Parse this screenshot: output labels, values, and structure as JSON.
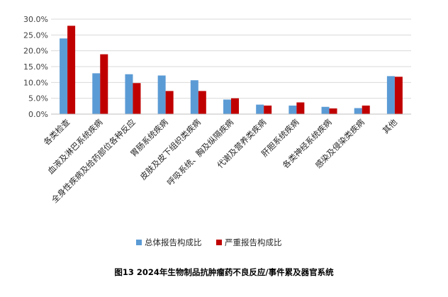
{
  "caption": "图13 2024年生物制品抗肿瘤药不良反应/事件累及器官系统",
  "colors": {
    "series1": "#5B9BD5",
    "series2": "#C00000",
    "grid": "#D9D9D9",
    "axis": "#BFBFBF"
  },
  "chart_data": {
    "type": "bar",
    "title": "",
    "xlabel": "",
    "ylabel": "",
    "ylim": [
      0,
      30
    ],
    "yticks": [
      0,
      5,
      10,
      15,
      20,
      25,
      30
    ],
    "ytick_labels": [
      "0.0%",
      "5.0%",
      "10.0%",
      "15.0%",
      "20.0%",
      "25.0%",
      "30.0%"
    ],
    "grid": true,
    "legend": "bottom",
    "categories": [
      "各类检查",
      "血液及淋巴系统疾病",
      "全身性疾病及给药部位各种反应",
      "胃肠系统疾病",
      "皮肤及皮下组织类疾病",
      "呼吸系统、胸及纵隔疾病",
      "代谢及营养类疾病",
      "肝胆系统疾病",
      "各类神经系统疾病",
      "感染及侵染类疾病",
      "其他"
    ],
    "series": [
      {
        "name": "总体报告构成比",
        "values": [
          23.9,
          12.9,
          12.6,
          12.2,
          10.7,
          4.6,
          3.0,
          2.7,
          2.3,
          1.9,
          12.0
        ]
      },
      {
        "name": "严重报告构成比",
        "values": [
          27.9,
          18.9,
          9.8,
          7.3,
          7.3,
          5.0,
          2.7,
          3.7,
          1.8,
          2.7,
          11.8
        ]
      }
    ]
  }
}
